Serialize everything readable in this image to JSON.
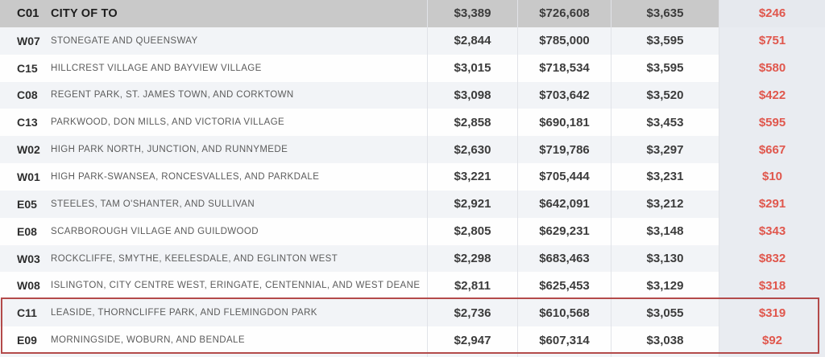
{
  "colors": {
    "red_value_text": "#e0574d",
    "red_highlight_box_border": "#b34a4a",
    "selected_row_bg": "#c9c9c9",
    "stripe_row_bg": "#f2f4f7",
    "last_column_bg": "#e9ecf1"
  },
  "chart_data": {
    "type": "table",
    "columns": [
      "district_code",
      "neighbourhoods",
      "value_1",
      "value_2",
      "value_3",
      "value_4"
    ],
    "rows": [
      {
        "code": "C01",
        "name": "CITY OF TO",
        "values": [
          "$3,389",
          "$726,608",
          "$3,635",
          "$246"
        ],
        "highlight": true,
        "in_red_box": false
      },
      {
        "code": "W07",
        "name": "STONEGATE AND QUEENSWAY",
        "values": [
          "$2,844",
          "$785,000",
          "$3,595",
          "$751"
        ],
        "highlight": false,
        "in_red_box": false
      },
      {
        "code": "C15",
        "name": "HILLCREST VILLAGE AND BAYVIEW VILLAGE",
        "values": [
          "$3,015",
          "$718,534",
          "$3,595",
          "$580"
        ],
        "highlight": false,
        "in_red_box": false
      },
      {
        "code": "C08",
        "name": "REGENT PARK, ST. JAMES TOWN, AND CORKTOWN",
        "values": [
          "$3,098",
          "$703,642",
          "$3,520",
          "$422"
        ],
        "highlight": false,
        "in_red_box": false
      },
      {
        "code": "C13",
        "name": "PARKWOOD, DON MILLS, AND VICTORIA VILLAGE",
        "values": [
          "$2,858",
          "$690,181",
          "$3,453",
          "$595"
        ],
        "highlight": false,
        "in_red_box": false
      },
      {
        "code": "W02",
        "name": "HIGH PARK NORTH, JUNCTION, AND RUNNYMEDE",
        "values": [
          "$2,630",
          "$719,786",
          "$3,297",
          "$667"
        ],
        "highlight": false,
        "in_red_box": false
      },
      {
        "code": "W01",
        "name": "HIGH PARK-SWANSEA, RONCESVALLES, AND PARKDALE",
        "values": [
          "$3,221",
          "$705,444",
          "$3,231",
          "$10"
        ],
        "highlight": false,
        "in_red_box": false
      },
      {
        "code": "E05",
        "name": "STEELES, TAM O'SHANTER, AND SULLIVAN",
        "values": [
          "$2,921",
          "$642,091",
          "$3,212",
          "$291"
        ],
        "highlight": false,
        "in_red_box": false
      },
      {
        "code": "E08",
        "name": "SCARBOROUGH VILLAGE AND GUILDWOOD",
        "values": [
          "$2,805",
          "$629,231",
          "$3,148",
          "$343"
        ],
        "highlight": false,
        "in_red_box": false
      },
      {
        "code": "W03",
        "name": "ROCKCLIFFE, SMYTHE, KEELESDALE, AND EGLINTON WEST",
        "values": [
          "$2,298",
          "$683,463",
          "$3,130",
          "$832"
        ],
        "highlight": false,
        "in_red_box": false
      },
      {
        "code": "W08",
        "name": "ISLINGTON, CITY CENTRE WEST, ERINGATE, CENTENNIAL, AND WEST DEANE",
        "values": [
          "$2,811",
          "$625,453",
          "$3,129",
          "$318"
        ],
        "highlight": false,
        "in_red_box": false
      },
      {
        "code": "C11",
        "name": "LEASIDE, THORNCLIFFE PARK, AND FLEMINGDON PARK",
        "values": [
          "$2,736",
          "$610,568",
          "$3,055",
          "$319"
        ],
        "highlight": false,
        "in_red_box": true
      },
      {
        "code": "E09",
        "name": "MORNINGSIDE, WOBURN, AND BENDALE",
        "values": [
          "$2,947",
          "$607,314",
          "$3,038",
          "$92"
        ],
        "highlight": false,
        "in_red_box": true
      }
    ]
  }
}
